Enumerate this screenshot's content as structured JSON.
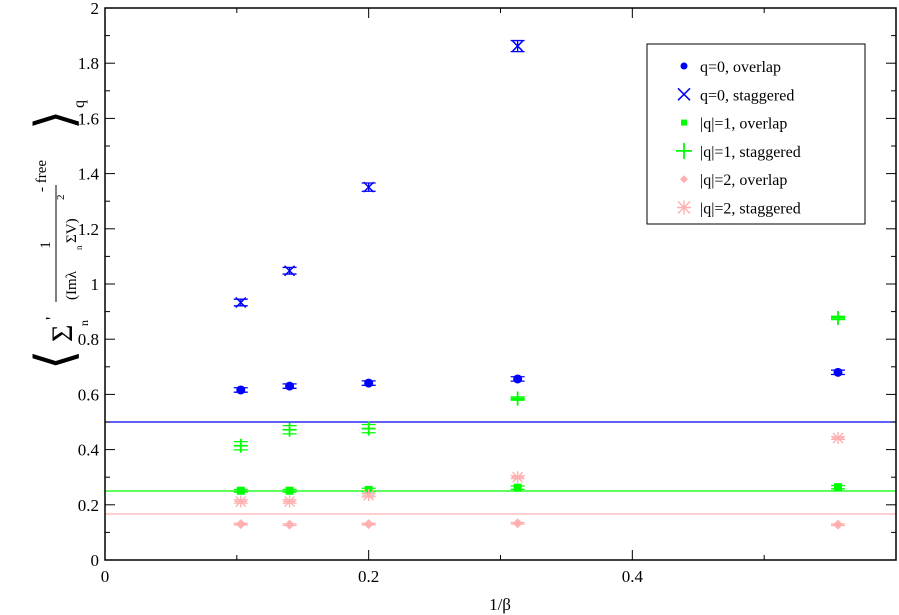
{
  "chart_data": {
    "type": "scatter",
    "xlabel": "1/β",
    "ylabel_parts": {
      "open": "⟨",
      "sigma": "Σ",
      "prime": "'",
      "n": "n",
      "num": "1",
      "den_a": "(Imλ",
      "den_n": "n",
      "den_b": "ΣV)",
      "sq": "2",
      "free": " - free",
      "close": "⟩",
      "q": "q"
    },
    "xlim": [
      0,
      0.6
    ],
    "ylim": [
      0,
      2
    ],
    "x_ticks": [
      "0",
      "0.2",
      "0.4"
    ],
    "x_tick_values": [
      0,
      0.2,
      0.4
    ],
    "y_ticks": [
      "0",
      "0.2",
      "0.4",
      "0.6",
      "0.8",
      "1",
      "1.2",
      "1.4",
      "1.6",
      "1.8",
      "2"
    ],
    "y_tick_values": [
      0,
      0.2,
      0.4,
      0.6,
      0.8,
      1,
      1.2,
      1.4,
      1.6,
      1.8,
      2
    ],
    "grid": false,
    "legend_placement": "top-right",
    "x": [
      0.103,
      0.14,
      0.2,
      0.313,
      0.556
    ],
    "series": [
      {
        "name": "q=0, overlap",
        "marker": "circle",
        "color": "#0000ff",
        "values": [
          0.616,
          0.63,
          0.641,
          0.656,
          0.68
        ],
        "err": [
          0.008,
          0.008,
          0.008,
          0.008,
          0.008
        ]
      },
      {
        "name": "q=0, staggered",
        "marker": "x",
        "color": "#0000ff",
        "values": [
          0.933,
          1.048,
          1.351,
          1.862,
          null
        ],
        "err": [
          0.012,
          0.012,
          0.015,
          0.02,
          0
        ]
      },
      {
        "name": "|q|=1, overlap",
        "marker": "square",
        "color": "#00ff00",
        "values": [
          0.251,
          0.251,
          0.254,
          0.262,
          0.264
        ],
        "err": [
          0.005,
          0.005,
          0.006,
          0.006,
          0.006
        ]
      },
      {
        "name": "|q|=1, staggered",
        "marker": "plus",
        "color": "#00ff00",
        "values": [
          0.414,
          0.472,
          0.476,
          0.585,
          0.877
        ],
        "err": [
          0.015,
          0.015,
          0.015,
          0.006,
          0.006
        ]
      },
      {
        "name": "|q|=2, overlap",
        "marker": "diamond",
        "color": "#ffb0b0",
        "values": [
          0.13,
          0.128,
          0.13,
          0.133,
          0.128
        ],
        "err": [
          0.003,
          0.003,
          0.003,
          0.003,
          0.003
        ]
      },
      {
        "name": "|q|=2, staggered",
        "marker": "star",
        "color": "#ffb0b0",
        "values": [
          0.212,
          0.212,
          0.235,
          0.3,
          0.442
        ],
        "err": [
          0.006,
          0.006,
          0.006,
          0.005,
          0.005
        ]
      }
    ],
    "hlines": [
      {
        "y": 0.5,
        "color": "#0000ff"
      },
      {
        "y": 0.25,
        "color": "#00ff00"
      },
      {
        "y": 0.1667,
        "color": "#ffb0b0"
      }
    ]
  }
}
